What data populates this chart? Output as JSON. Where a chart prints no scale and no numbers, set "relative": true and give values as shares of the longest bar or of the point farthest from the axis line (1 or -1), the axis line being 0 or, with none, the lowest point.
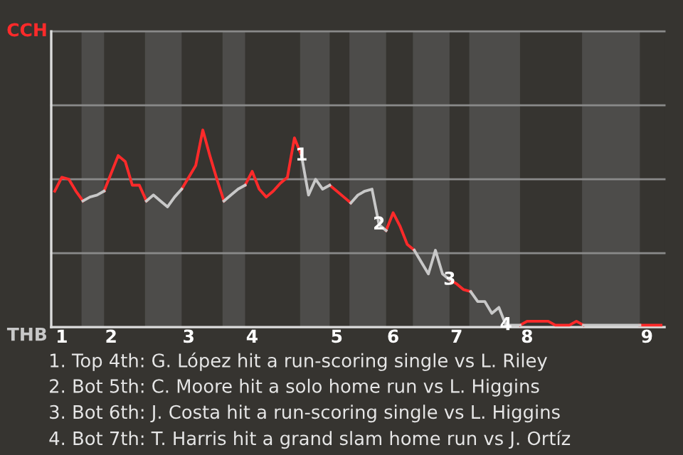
{
  "chart_data": {
    "type": "line",
    "relative": true,
    "categories": [
      null,
      "1",
      null,
      null,
      null,
      null,
      null,
      null,
      "2",
      null,
      null,
      null,
      null,
      null,
      null,
      null,
      null,
      null,
      null,
      "3",
      null,
      null,
      null,
      null,
      null,
      null,
      null,
      null,
      "4",
      null,
      null,
      null,
      null,
      null,
      null,
      null,
      null,
      null,
      null,
      null,
      "5",
      null,
      null,
      null,
      null,
      null,
      null,
      null,
      "6",
      null,
      null,
      null,
      null,
      null,
      null,
      null,
      null,
      "7",
      null,
      null,
      null,
      null,
      null,
      null,
      null,
      null,
      null,
      "8",
      null,
      null,
      null,
      null,
      null,
      null,
      null,
      null,
      null,
      null,
      null,
      null,
      null,
      null,
      null,
      null,
      "9",
      null,
      null
    ],
    "marker": "none",
    "line_style": "solid",
    "ref_lines": [
      {
        "axis": "y",
        "value": 0.375,
        "color": "#8a8a8a"
      },
      {
        "axis": "y",
        "value": 0.75,
        "color": "#8a8a8a"
      },
      {
        "axis": "y",
        "value": 1.125,
        "color": "#8a8a8a"
      },
      {
        "axis": "y",
        "value": 1.5,
        "color": "#8a8a8a"
      }
    ],
    "series": [
      {
        "color": "#ff2a2a",
        "values": [
          0.69,
          0.76,
          0.75,
          0.69,
          0.64,
          null,
          null,
          0.69,
          0.78,
          0.87,
          0.84,
          0.72,
          0.72,
          0.64,
          null,
          null,
          null,
          null,
          0.7,
          0.76,
          0.82,
          1,
          0.87,
          0.75,
          0.64,
          null,
          null,
          0.72,
          0.79,
          0.7,
          0.66,
          0.69,
          0.73,
          0.76,
          0.96,
          0.87,
          null,
          null,
          null,
          0.72,
          0.69,
          0.66,
          0.63,
          null,
          null,
          null,
          null,
          0.49,
          0.58,
          0.51,
          0.42,
          0.39,
          null,
          null,
          null,
          null,
          0.24,
          0.22,
          0.19,
          0.18,
          null,
          null,
          null,
          null,
          null,
          null,
          0.01,
          0.03,
          0.03,
          0.03,
          0.03,
          0.01,
          0.01,
          0.01,
          0.03,
          0.01,
          null,
          null,
          null,
          null,
          null,
          null,
          null,
          0.01,
          0.01,
          0.01,
          0.01
        ]
      },
      {
        "color": "#c8c8c8",
        "values": [
          null,
          null,
          null,
          null,
          0.64,
          0.66,
          0.67,
          0.69,
          null,
          null,
          null,
          null,
          null,
          0.64,
          0.67,
          0.64,
          0.61,
          0.66,
          0.7,
          null,
          null,
          null,
          null,
          null,
          0.64,
          0.67,
          0.7,
          0.72,
          null,
          null,
          null,
          null,
          null,
          null,
          null,
          0.87,
          0.67,
          0.75,
          0.7,
          0.72,
          null,
          null,
          0.63,
          0.67,
          0.69,
          0.7,
          0.52,
          0.49,
          null,
          null,
          null,
          0.39,
          0.33,
          0.27,
          0.39,
          0.27,
          0.24,
          null,
          null,
          0.18,
          0.13,
          0.13,
          0.07,
          0.1,
          0.01,
          0.01,
          0.01,
          null,
          null,
          null,
          null,
          null,
          null,
          null,
          null,
          0.01,
          0.01,
          0.01,
          0.01,
          0.01,
          0.01,
          0.01,
          0.01,
          0.01,
          null,
          null,
          null
        ]
      }
    ],
    "annotations": [
      "CCH",
      "THB",
      {
        "text": "1",
        "y": 0.87
      },
      {
        "text": "2",
        "y": 0.52
      },
      {
        "text": "3",
        "y": 0.24
      },
      {
        "text": "4",
        "y": 0.01
      },
      "1. Top 4th: G. López hit a run-scoring single vs L. Riley",
      "2. Bot 5th: C. Moore hit a solo home run vs L. Higgins",
      "3. Bot 6th: J. Costa hit a run-scoring single vs L. Higgins",
      "4. Bot 7th: T. Harris hit a grand slam home run vs J. Ortíz"
    ]
  }
}
